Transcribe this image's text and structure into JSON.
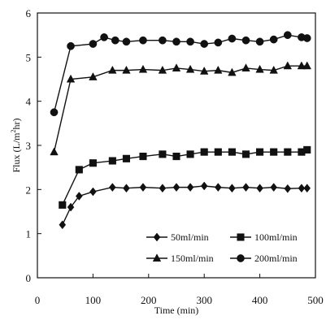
{
  "chart_data": {
    "type": "line",
    "title": "",
    "xlabel": "Time (min)",
    "ylabel_parts": [
      "Flux (L/m",
      "2",
      "hr)"
    ],
    "xlim": [
      0,
      500
    ],
    "ylim": [
      0,
      6
    ],
    "xticks": [
      0,
      100,
      200,
      300,
      400,
      500
    ],
    "yticks": [
      0,
      1,
      2,
      3,
      4,
      5,
      6
    ],
    "grid": false,
    "legend_position": "bottom-right",
    "series": [
      {
        "name": "50ml/min",
        "marker": "diamond",
        "x": [
          45,
          60,
          75,
          100,
          135,
          160,
          190,
          225,
          250,
          275,
          300,
          325,
          350,
          375,
          400,
          425,
          450,
          475,
          485
        ],
        "y": [
          1.2,
          1.6,
          1.85,
          1.95,
          2.05,
          2.03,
          2.05,
          2.03,
          2.05,
          2.05,
          2.08,
          2.05,
          2.03,
          2.05,
          2.03,
          2.05,
          2.02,
          2.03,
          2.03
        ]
      },
      {
        "name": "100ml/min",
        "marker": "square",
        "x": [
          45,
          75,
          100,
          135,
          160,
          190,
          225,
          250,
          275,
          300,
          325,
          350,
          375,
          400,
          425,
          450,
          475,
          485
        ],
        "y": [
          1.65,
          2.45,
          2.6,
          2.65,
          2.7,
          2.75,
          2.8,
          2.75,
          2.8,
          2.85,
          2.85,
          2.85,
          2.8,
          2.85,
          2.85,
          2.85,
          2.85,
          2.9
        ]
      },
      {
        "name": "150ml/min",
        "marker": "triangle",
        "x": [
          30,
          60,
          100,
          135,
          160,
          190,
          225,
          250,
          275,
          300,
          325,
          350,
          375,
          400,
          425,
          450,
          475,
          485
        ],
        "y": [
          2.85,
          4.5,
          4.55,
          4.7,
          4.7,
          4.72,
          4.7,
          4.75,
          4.72,
          4.68,
          4.7,
          4.65,
          4.75,
          4.72,
          4.7,
          4.8,
          4.8,
          4.8
        ]
      },
      {
        "name": "200ml/min",
        "marker": "circle",
        "x": [
          30,
          60,
          100,
          120,
          140,
          160,
          190,
          225,
          250,
          275,
          300,
          325,
          350,
          375,
          400,
          425,
          450,
          475,
          485
        ],
        "y": [
          3.75,
          5.25,
          5.3,
          5.45,
          5.38,
          5.35,
          5.38,
          5.38,
          5.35,
          5.35,
          5.3,
          5.33,
          5.42,
          5.38,
          5.35,
          5.4,
          5.5,
          5.45,
          5.43
        ]
      }
    ]
  }
}
